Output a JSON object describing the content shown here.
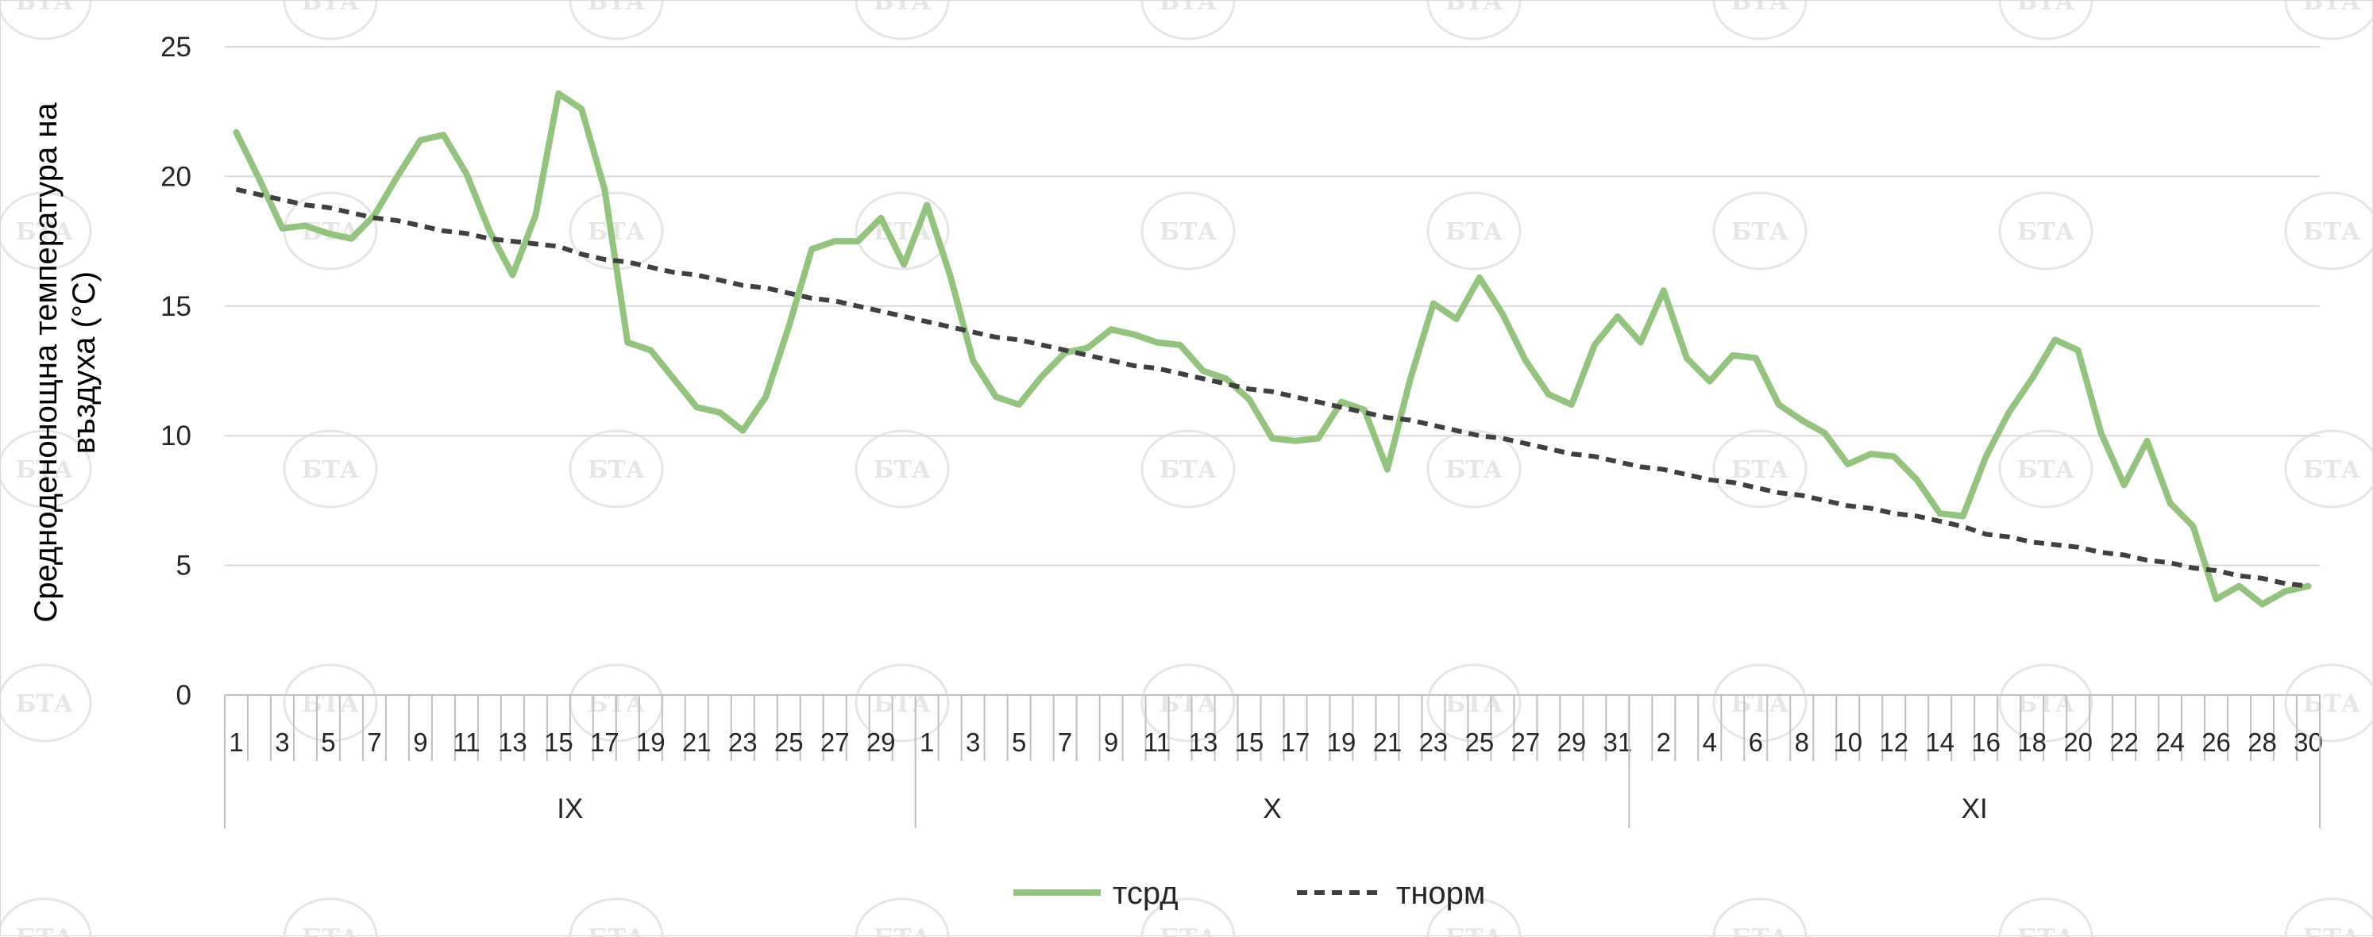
{
  "chart_data": {
    "type": "line",
    "ylabel": "Средноденонощна температура на въздуха (°C)",
    "ylim": [
      0,
      25
    ],
    "yticks": [
      "0",
      "5",
      "10",
      "15",
      "20",
      "25"
    ],
    "grid": true,
    "legend_position": "bottom",
    "months": [
      "IX",
      "X",
      "XI"
    ],
    "days_per_month": [
      30,
      31,
      30
    ],
    "series": [
      {
        "name": "тсрд",
        "color": "#93c47d",
        "style": "solid",
        "values": [
          21.7,
          19.9,
          18.0,
          18.1,
          17.8,
          17.6,
          18.5,
          20.0,
          21.4,
          21.6,
          20.1,
          17.9,
          16.2,
          18.5,
          23.2,
          22.6,
          19.5,
          13.6,
          13.3,
          12.2,
          11.1,
          10.9,
          10.2,
          11.5,
          14.2,
          17.2,
          17.5,
          17.5,
          18.4,
          16.6,
          18.9,
          16.2,
          12.9,
          11.5,
          11.2,
          12.3,
          13.2,
          13.4,
          14.1,
          13.9,
          13.6,
          13.5,
          12.5,
          12.2,
          11.4,
          9.9,
          9.8,
          9.9,
          11.3,
          11.0,
          8.7,
          12.2,
          15.1,
          14.5,
          16.1,
          14.7,
          12.9,
          11.6,
          11.2,
          13.5,
          14.6,
          13.6,
          15.6,
          13.0,
          12.1,
          13.1,
          13.0,
          11.2,
          10.6,
          10.1,
          8.9,
          9.3,
          9.2,
          8.3,
          7.0,
          6.9,
          9.2,
          10.9,
          12.2,
          13.7,
          13.3,
          10.1,
          8.1,
          9.8,
          7.4,
          6.5,
          3.7,
          4.2,
          3.5,
          4.0,
          4.2
        ]
      },
      {
        "name": "тнорм",
        "color": "#404040",
        "style": "dashed",
        "values": [
          19.5,
          19.3,
          19.1,
          18.9,
          18.8,
          18.6,
          18.4,
          18.3,
          18.1,
          17.9,
          17.8,
          17.6,
          17.5,
          17.4,
          17.3,
          17.0,
          16.8,
          16.7,
          16.5,
          16.3,
          16.2,
          16.0,
          15.8,
          15.7,
          15.5,
          15.3,
          15.2,
          15.0,
          14.8,
          14.6,
          14.4,
          14.2,
          14.0,
          13.8,
          13.7,
          13.5,
          13.3,
          13.1,
          12.9,
          12.7,
          12.6,
          12.4,
          12.2,
          12.0,
          11.8,
          11.7,
          11.5,
          11.3,
          11.1,
          10.9,
          10.7,
          10.6,
          10.4,
          10.2,
          10.0,
          9.9,
          9.7,
          9.5,
          9.3,
          9.2,
          9.0,
          8.8,
          8.7,
          8.5,
          8.3,
          8.2,
          8.0,
          7.8,
          7.7,
          7.5,
          7.3,
          7.2,
          7.0,
          6.9,
          6.7,
          6.5,
          6.2,
          6.1,
          5.9,
          5.8,
          5.7,
          5.5,
          5.4,
          5.2,
          5.1,
          4.9,
          4.8,
          4.6,
          4.5,
          4.3,
          4.2
        ]
      }
    ]
  },
  "watermark": {
    "text": "БТА"
  }
}
